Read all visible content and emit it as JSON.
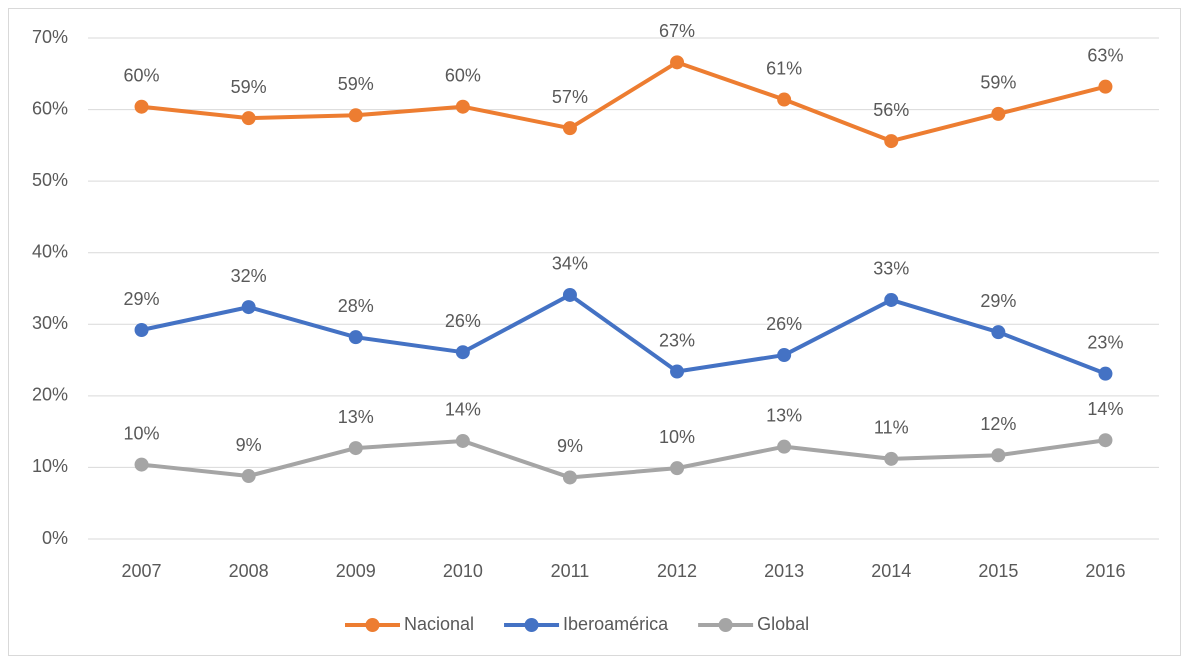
{
  "chart_data": {
    "type": "line",
    "categories": [
      "2007",
      "2008",
      "2009",
      "2010",
      "2011",
      "2012",
      "2013",
      "2014",
      "2015",
      "2016"
    ],
    "series": [
      {
        "name": "Nacional",
        "color": "#ed7d31",
        "values": [
          60.4,
          58.8,
          59.2,
          60.4,
          57.4,
          66.6,
          61.4,
          55.6,
          59.4,
          63.2
        ],
        "value_labels": [
          "60%",
          "59%",
          "59%",
          "60%",
          "57%",
          "67%",
          "61%",
          "56%",
          "59%",
          "63%"
        ]
      },
      {
        "name": "Iberoamérica",
        "color": "#4472c4",
        "values": [
          29.2,
          32.4,
          28.2,
          26.1,
          34.1,
          23.4,
          25.7,
          33.4,
          28.9,
          23.1
        ],
        "value_labels": [
          "29%",
          "32%",
          "28%",
          "26%",
          "34%",
          "23%",
          "26%",
          "33%",
          "29%",
          "23%"
        ]
      },
      {
        "name": "Global",
        "color": "#a5a5a5",
        "values": [
          10.4,
          8.8,
          12.7,
          13.7,
          8.6,
          9.9,
          12.9,
          11.2,
          11.7,
          13.8
        ],
        "value_labels": [
          "10%",
          "9%",
          "13%",
          "14%",
          "9%",
          "10%",
          "13%",
          "11%",
          "12%",
          "14%"
        ]
      }
    ],
    "ylim": [
      0,
      70
    ],
    "yticks": [
      {
        "value": 0,
        "label": "0%"
      },
      {
        "value": 10,
        "label": "10%"
      },
      {
        "value": 20,
        "label": "20%"
      },
      {
        "value": 30,
        "label": "30%"
      },
      {
        "value": 40,
        "label": "40%"
      },
      {
        "value": 50,
        "label": "50%"
      },
      {
        "value": 60,
        "label": "60%"
      },
      {
        "value": 70,
        "label": "70%"
      }
    ],
    "grid": true,
    "legend": "bottom"
  }
}
